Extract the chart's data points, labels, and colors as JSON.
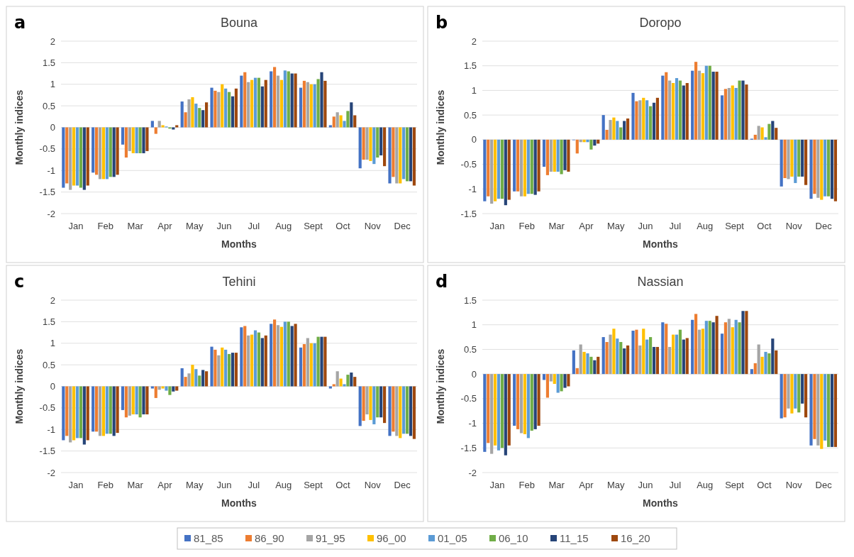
{
  "chart_data": [
    {
      "type": "bar",
      "title": "Bouna",
      "xlabel": "Months",
      "ylabel": "Monthly indices",
      "annotations": [
        "a"
      ],
      "grid": "y",
      "ylim": [
        -2,
        2
      ],
      "yticks": [
        -2,
        -1.5,
        -1,
        -0.5,
        0,
        0.5,
        1,
        1.5,
        2
      ],
      "categories": [
        "Jan",
        "Feb",
        "Mar",
        "Apr",
        "May",
        "Jun",
        "Jul",
        "Aug",
        "Sept",
        "Oct",
        "Nov",
        "Dec"
      ],
      "series": [
        {
          "color": "#4472c4",
          "values": [
            -1.4,
            -1.05,
            -0.4,
            0.15,
            0.6,
            0.92,
            1.2,
            1.3,
            0.92,
            0.05,
            -0.95,
            -1.3
          ]
        },
        {
          "color": "#ed7d31",
          "values": [
            -1.3,
            -1.1,
            -0.7,
            -0.15,
            0.35,
            0.85,
            1.28,
            1.4,
            1.08,
            0.25,
            -0.75,
            -1.15
          ]
        },
        {
          "color": "#a5a5a5",
          "values": [
            -1.45,
            -1.2,
            -0.55,
            0.15,
            0.65,
            0.82,
            1.05,
            1.2,
            1.05,
            0.35,
            -0.75,
            -1.3
          ]
        },
        {
          "color": "#ffc000",
          "values": [
            -1.35,
            -1.2,
            -0.6,
            0.05,
            0.7,
            1.0,
            1.1,
            1.1,
            1.0,
            0.28,
            -0.78,
            -1.3
          ]
        },
        {
          "color": "#5b9bd5",
          "values": [
            -1.35,
            -1.2,
            -0.6,
            0.02,
            0.55,
            0.9,
            1.15,
            1.32,
            1.0,
            0.15,
            -0.85,
            -1.2
          ]
        },
        {
          "color": "#70ad47",
          "values": [
            -1.4,
            -1.15,
            -0.6,
            -0.03,
            0.45,
            0.82,
            1.15,
            1.3,
            1.12,
            0.38,
            -0.7,
            -1.25
          ]
        },
        {
          "color": "#264478",
          "values": [
            -1.45,
            -1.15,
            -0.6,
            -0.05,
            0.4,
            0.72,
            0.95,
            1.25,
            1.28,
            0.58,
            -0.65,
            -1.25
          ]
        },
        {
          "color": "#9e480e",
          "values": [
            -1.35,
            -1.1,
            -0.55,
            0.05,
            0.58,
            0.9,
            1.1,
            1.25,
            1.08,
            0.28,
            -0.9,
            -1.35
          ]
        }
      ]
    },
    {
      "type": "bar",
      "title": "Doropo",
      "xlabel": "Months",
      "ylabel": "Monthly indices",
      "annotations": [
        "b"
      ],
      "grid": "y",
      "ylim": [
        -1.5,
        2
      ],
      "yticks": [
        -1.5,
        -1,
        -0.5,
        0,
        0.5,
        1,
        1.5,
        2
      ],
      "categories": [
        "Jan",
        "Feb",
        "Mar",
        "Apr",
        "May",
        "Jun",
        "Jul",
        "Aug",
        "Sept",
        "Oct",
        "Nov",
        "Dec"
      ],
      "series": [
        {
          "color": "#4472c4",
          "values": [
            -1.25,
            -1.05,
            -0.55,
            -0.01,
            0.5,
            0.95,
            1.3,
            1.4,
            0.9,
            0.02,
            -0.95,
            -1.2
          ]
        },
        {
          "color": "#ed7d31",
          "values": [
            -1.15,
            -1.05,
            -0.72,
            -0.28,
            0.2,
            0.78,
            1.37,
            1.58,
            1.03,
            0.1,
            -0.78,
            -1.1
          ]
        },
        {
          "color": "#a5a5a5",
          "values": [
            -1.3,
            -1.15,
            -0.65,
            -0.05,
            0.4,
            0.8,
            1.2,
            1.4,
            1.05,
            0.28,
            -0.8,
            -1.18
          ]
        },
        {
          "color": "#ffc000",
          "values": [
            -1.25,
            -1.15,
            -0.65,
            -0.05,
            0.45,
            0.85,
            1.15,
            1.35,
            1.1,
            0.25,
            -0.75,
            -1.22
          ]
        },
        {
          "color": "#5b9bd5",
          "values": [
            -1.2,
            -1.1,
            -0.65,
            -0.05,
            0.38,
            0.8,
            1.25,
            1.5,
            1.05,
            0.05,
            -0.88,
            -1.15
          ]
        },
        {
          "color": "#70ad47",
          "values": [
            -1.2,
            -1.1,
            -0.7,
            -0.2,
            0.25,
            0.68,
            1.2,
            1.5,
            1.2,
            0.32,
            -0.75,
            -1.15
          ]
        },
        {
          "color": "#264478",
          "values": [
            -1.33,
            -1.12,
            -0.62,
            -0.12,
            0.38,
            0.75,
            1.1,
            1.38,
            1.2,
            0.38,
            -0.75,
            -1.2
          ]
        },
        {
          "color": "#9e480e",
          "values": [
            -1.22,
            -1.05,
            -0.65,
            -0.08,
            0.43,
            0.85,
            1.15,
            1.38,
            1.12,
            0.24,
            -0.92,
            -1.25
          ]
        }
      ]
    },
    {
      "type": "bar",
      "title": "Tehini",
      "xlabel": "Months",
      "ylabel": "Monthly indices",
      "annotations": [
        "c"
      ],
      "grid": "y",
      "ylim": [
        -2,
        2
      ],
      "yticks": [
        -2,
        -1.5,
        -1,
        -0.5,
        0,
        0.5,
        1,
        1.5,
        2
      ],
      "categories": [
        "Jan",
        "Feb",
        "Mar",
        "Apr",
        "May",
        "Jun",
        "Jul",
        "Aug",
        "Sept",
        "Oct",
        "Nov",
        "Dec"
      ],
      "series": [
        {
          "color": "#4472c4",
          "values": [
            -1.25,
            -1.05,
            -0.55,
            -0.05,
            0.42,
            0.92,
            1.37,
            1.45,
            0.9,
            -0.05,
            -0.92,
            -1.15
          ]
        },
        {
          "color": "#ed7d31",
          "values": [
            -1.15,
            -1.05,
            -0.72,
            -0.27,
            0.22,
            0.85,
            1.4,
            1.55,
            0.98,
            0.05,
            -0.8,
            -1.05
          ]
        },
        {
          "color": "#a5a5a5",
          "values": [
            -1.3,
            -1.15,
            -0.68,
            -0.08,
            0.3,
            0.72,
            1.18,
            1.42,
            1.12,
            0.35,
            -0.65,
            -1.15
          ]
        },
        {
          "color": "#ffc000",
          "values": [
            -1.25,
            -1.15,
            -0.65,
            -0.05,
            0.5,
            0.9,
            1.2,
            1.38,
            1.0,
            0.18,
            -0.78,
            -1.2
          ]
        },
        {
          "color": "#5b9bd5",
          "values": [
            -1.2,
            -1.1,
            -0.65,
            -0.1,
            0.4,
            0.85,
            1.3,
            1.5,
            1.0,
            0.05,
            -0.88,
            -1.1
          ]
        },
        {
          "color": "#70ad47",
          "values": [
            -1.2,
            -1.1,
            -0.72,
            -0.2,
            0.25,
            0.75,
            1.25,
            1.5,
            1.15,
            0.27,
            -0.72,
            -1.1
          ]
        },
        {
          "color": "#264478",
          "values": [
            -1.35,
            -1.15,
            -0.65,
            -0.12,
            0.38,
            0.78,
            1.12,
            1.4,
            1.15,
            0.32,
            -0.72,
            -1.15
          ]
        },
        {
          "color": "#9e480e",
          "values": [
            -1.25,
            -1.08,
            -0.65,
            -0.1,
            0.35,
            0.78,
            1.18,
            1.45,
            1.15,
            0.22,
            -0.85,
            -1.22
          ]
        }
      ]
    },
    {
      "type": "bar",
      "title": "Nassian",
      "xlabel": "Months",
      "ylabel": "Monthly indices",
      "annotations": [
        "d"
      ],
      "grid": "y",
      "legend": "bottom",
      "ylim": [
        -2,
        1.5
      ],
      "yticks": [
        -2,
        -1.5,
        -1,
        -0.5,
        0,
        0.5,
        1,
        1.5
      ],
      "categories": [
        "Jan",
        "Feb",
        "Mar",
        "Apr",
        "May",
        "Jun",
        "Jul",
        "Aug",
        "Sept",
        "Oct",
        "Nov",
        "Dec"
      ],
      "series": [
        {
          "name": "81_85",
          "color": "#4472c4",
          "values": [
            -1.58,
            -1.05,
            -0.12,
            0.48,
            0.75,
            0.88,
            1.05,
            1.1,
            0.82,
            0.1,
            -0.9,
            -1.45
          ]
        },
        {
          "name": "86_90",
          "color": "#ed7d31",
          "values": [
            -1.4,
            -1.12,
            -0.48,
            0.12,
            0.65,
            0.9,
            1.02,
            1.22,
            1.05,
            0.22,
            -0.88,
            -1.32
          ]
        },
        {
          "name": "91_95",
          "color": "#a5a5a5",
          "values": [
            -1.62,
            -1.2,
            -0.15,
            0.6,
            0.8,
            0.58,
            0.55,
            0.9,
            1.12,
            0.6,
            -0.7,
            -1.45
          ]
        },
        {
          "name": "96_00",
          "color": "#ffc000",
          "values": [
            -1.45,
            -1.22,
            -0.2,
            0.45,
            0.92,
            0.92,
            0.8,
            0.92,
            0.95,
            0.35,
            -0.8,
            -1.52
          ]
        },
        {
          "name": "01_05",
          "color": "#5b9bd5",
          "values": [
            -1.55,
            -1.3,
            -0.38,
            0.42,
            0.72,
            0.7,
            0.8,
            1.08,
            1.1,
            0.45,
            -0.7,
            -1.35
          ]
        },
        {
          "name": "06_10",
          "color": "#70ad47",
          "values": [
            -1.5,
            -1.15,
            -0.35,
            0.35,
            0.65,
            0.75,
            0.9,
            1.08,
            1.05,
            0.42,
            -0.78,
            -1.48
          ]
        },
        {
          "name": "11_15",
          "color": "#264478",
          "values": [
            -1.65,
            -1.12,
            -0.28,
            0.28,
            0.52,
            0.55,
            0.7,
            1.05,
            1.28,
            0.72,
            -0.6,
            -1.48
          ]
        },
        {
          "name": "16_20",
          "color": "#9e480e",
          "values": [
            -1.45,
            -1.05,
            -0.25,
            0.35,
            0.58,
            0.55,
            0.73,
            1.18,
            1.28,
            0.48,
            -0.88,
            -1.48
          ]
        }
      ]
    }
  ]
}
